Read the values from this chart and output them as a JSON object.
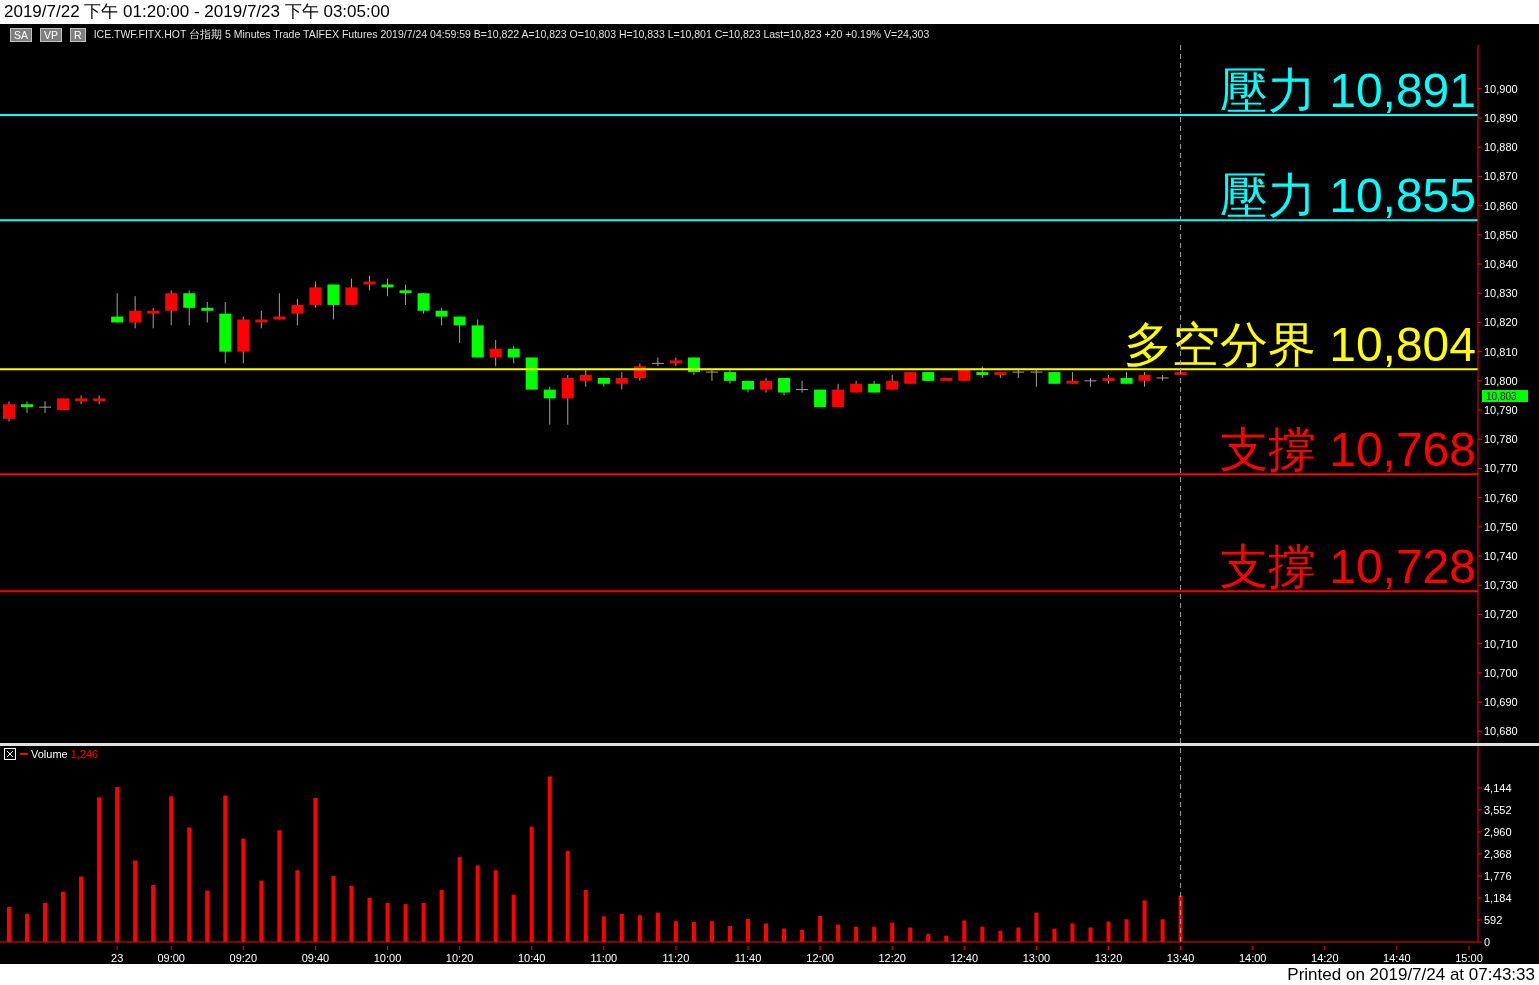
{
  "chart_data": [
    {
      "type": "candlestick",
      "title": "2019/7/22 下午 01:20:00 - 2019/7/23 下午 03:05:00",
      "subtitle": "ICE.TWF.FITX.HOT  台指期  5 Minutes  Trade  TAIFEX  Futures  2019/7/24  04:59:59  B=10,822  A=10,823  O=10,803  H=10,833  L=10,801  C=10,823  Last=10,823  +20  +0.19%  V=24,303",
      "categories": [
        null,
        null,
        null,
        null,
        null,
        null,
        "23",
        null,
        null,
        "09:00",
        null,
        null,
        null,
        "09:20",
        null,
        null,
        null,
        "09:40",
        null,
        null,
        null,
        "10:00",
        null,
        null,
        null,
        "10:20",
        null,
        null,
        null,
        "10:40",
        null,
        null,
        null,
        "11:00",
        null,
        null,
        null,
        "11:20",
        null,
        null,
        null,
        "11:40",
        null,
        null,
        null,
        "12:00",
        null,
        null,
        null,
        "12:20",
        null,
        null,
        null,
        "12:40",
        null,
        null,
        null,
        "13:00",
        null,
        null,
        null,
        "13:20",
        null,
        null,
        null,
        "13:40",
        null,
        null,
        null,
        "14:00",
        null,
        null,
        null,
        "14:20",
        null,
        null,
        null,
        "14:40",
        null,
        null,
        null,
        "15:00"
      ],
      "ohlc": [
        [
          10787,
          10793,
          10786,
          10792
        ],
        [
          10792,
          10793,
          10789,
          10791
        ],
        [
          10791,
          10793,
          10789,
          10791
        ],
        [
          10790,
          10794,
          10790,
          10794
        ],
        [
          10793,
          10795,
          10792,
          10794
        ],
        [
          10793,
          10795,
          10792,
          10794
        ],
        [
          10822,
          10830,
          10820,
          10820
        ],
        [
          10820,
          10829,
          10818,
          10824
        ],
        [
          10823,
          10825,
          10818,
          10824
        ],
        [
          10824,
          10831,
          10819,
          10830
        ],
        [
          10830,
          10831,
          10819,
          10825
        ],
        [
          10825,
          10827,
          10820,
          10824
        ],
        [
          10823,
          10827,
          10806,
          10810
        ],
        [
          10810,
          10822,
          10806,
          10821
        ],
        [
          10820,
          10824,
          10818,
          10821
        ],
        [
          10821,
          10830,
          10821,
          10822
        ],
        [
          10823,
          10828,
          10819,
          10826
        ],
        [
          10826,
          10834,
          10825,
          10832
        ],
        [
          10833,
          10833,
          10821,
          10826
        ],
        [
          10826,
          10835,
          10826,
          10832
        ],
        [
          10833,
          10836,
          10831,
          10834
        ],
        [
          10833,
          10835,
          10829,
          10832
        ],
        [
          10831,
          10833,
          10826,
          10830
        ],
        [
          10830,
          10830,
          10823,
          10824
        ],
        [
          10824,
          10825,
          10819,
          10822
        ],
        [
          10822,
          10822,
          10813,
          10819
        ],
        [
          10819,
          10821,
          10808,
          10808
        ],
        [
          10808,
          10814,
          10805,
          10811
        ],
        [
          10811,
          10812,
          10806,
          10808
        ],
        [
          10808,
          10808,
          10797,
          10797
        ],
        [
          10797,
          10798,
          10785,
          10794
        ],
        [
          10794,
          10802,
          10785,
          10801
        ],
        [
          10800,
          10804,
          10798,
          10802
        ],
        [
          10801,
          10801,
          10798,
          10799
        ],
        [
          10799,
          10803,
          10797,
          10801
        ],
        [
          10801,
          10806,
          10800,
          10805
        ],
        [
          10806,
          10808,
          10805,
          10806
        ],
        [
          10806,
          10808,
          10805,
          10807
        ],
        [
          10808,
          10808,
          10802,
          10803
        ],
        [
          10803,
          10804,
          10800,
          10803
        ],
        [
          10803,
          10804,
          10799,
          10800
        ],
        [
          10800,
          10800,
          10796,
          10797
        ],
        [
          10797,
          10801,
          10796,
          10800
        ],
        [
          10801,
          10801,
          10795,
          10796
        ],
        [
          10797,
          10800,
          10796,
          10797
        ],
        [
          10797,
          10797,
          10791,
          10791
        ],
        [
          10791,
          10799,
          10791,
          10797
        ],
        [
          10796,
          10800,
          10796,
          10799
        ],
        [
          10799,
          10800,
          10796,
          10796
        ],
        [
          10797,
          10802,
          10797,
          10800
        ],
        [
          10799,
          10803,
          10799,
          10803
        ],
        [
          10803,
          10803,
          10800,
          10800
        ],
        [
          10800,
          10801,
          10800,
          10801
        ],
        [
          10800,
          10804,
          10800,
          10804
        ],
        [
          10803,
          10805,
          10801,
          10802
        ],
        [
          10802,
          10803,
          10801,
          10803
        ],
        [
          10803,
          10804,
          10801,
          10803
        ],
        [
          10803,
          10804,
          10798,
          10803
        ],
        [
          10803,
          10803,
          10799,
          10799
        ],
        [
          10799,
          10803,
          10799,
          10800
        ],
        [
          10800,
          10801,
          10798,
          10800
        ],
        [
          10800,
          10802,
          10799,
          10801
        ],
        [
          10801,
          10803,
          10799,
          10799
        ],
        [
          10800,
          10803,
          10798,
          10802
        ],
        [
          10801,
          10802,
          10800,
          10801
        ],
        [
          10802,
          10803,
          10802,
          10803
        ],
        null,
        null,
        null,
        null,
        null,
        null,
        null,
        null,
        null,
        null,
        null,
        null,
        null,
        null,
        null,
        null
      ],
      "colors": [
        "#ff0000",
        "#00ff00",
        "#a0a0a0",
        "#ff0000",
        "#ff0000",
        "#ff0000",
        "#00ff00",
        "#ff0000",
        "#ff0000",
        "#ff0000",
        "#00ff00",
        "#00ff00",
        "#00ff00",
        "#ff0000",
        "#ff0000",
        "#ff0000",
        "#ff0000",
        "#ff0000",
        "#00ff00",
        "#ff0000",
        "#ff0000",
        "#00ff00",
        "#00ff00",
        "#00ff00",
        "#00ff00",
        "#00ff00",
        "#00ff00",
        "#ff0000",
        "#00ff00",
        "#00ff00",
        "#00ff00",
        "#ff0000",
        "#ff0000",
        "#00ff00",
        "#ff0000",
        "#ff0000",
        "#a0a0a0",
        "#ff0000",
        "#00ff00",
        "#a0a0a0",
        "#00ff00",
        "#00ff00",
        "#ff0000",
        "#00ff00",
        "#a0a0a0",
        "#00ff00",
        "#ff0000",
        "#ff0000",
        "#00ff00",
        "#ff0000",
        "#ff0000",
        "#00ff00",
        "#ff0000",
        "#ff0000",
        "#00ff00",
        "#ff0000",
        "#a0a0a0",
        "#a0a0a0",
        "#00ff00",
        "#ff0000",
        "#a0a0a0",
        "#ff0000",
        "#00ff00",
        "#ff0000",
        "#a0a0a0",
        "#ff0000",
        null,
        null,
        null,
        null,
        null,
        null,
        null,
        null,
        null,
        null,
        null,
        null,
        null,
        null,
        null,
        null
      ],
      "ylim": [
        10676,
        10915
      ],
      "yticks": [
        {
          "value": 10680,
          "label": "10,680"
        },
        {
          "value": 10690,
          "label": "10,690"
        },
        {
          "value": 10700,
          "label": "10,700"
        },
        {
          "value": 10710,
          "label": "10,710"
        },
        {
          "value": 10720,
          "label": "10,720"
        },
        {
          "value": 10730,
          "label": "10,730"
        },
        {
          "value": 10740,
          "label": "10,740"
        },
        {
          "value": 10750,
          "label": "10,750"
        },
        {
          "value": 10760,
          "label": "10,760"
        },
        {
          "value": 10770,
          "label": "10,770"
        },
        {
          "value": 10780,
          "label": "10,780"
        },
        {
          "value": 10790,
          "label": "10,790"
        },
        {
          "value": 10800,
          "label": "10,800"
        },
        {
          "value": 10810,
          "label": "10,810"
        },
        {
          "value": 10820,
          "label": "10,820"
        },
        {
          "value": 10830,
          "label": "10,830"
        },
        {
          "value": 10840,
          "label": "10,840"
        },
        {
          "value": 10850,
          "label": "10,850"
        },
        {
          "value": 10860,
          "label": "10,860"
        },
        {
          "value": 10870,
          "label": "10,870"
        },
        {
          "value": 10880,
          "label": "10,880"
        },
        {
          "value": 10890,
          "label": "10,890"
        },
        {
          "value": 10900,
          "label": "10,900"
        }
      ],
      "tick_labels": "y",
      "ref_lines": [
        {
          "axis": "y",
          "value": 10891,
          "label": "壓力 10,891",
          "color": "#00ffff"
        },
        {
          "axis": "y",
          "value": 10855,
          "label": "壓力 10,855",
          "color": "#00ffff"
        },
        {
          "axis": "y",
          "value": 10804,
          "label": "多空分界 10,804",
          "color": "#ffff00"
        },
        {
          "axis": "y",
          "value": 10768,
          "label": "支撐 10,768",
          "color": "#ff0000"
        },
        {
          "axis": "y",
          "value": 10728,
          "label": "支撐 10,728",
          "color": "#ff0000"
        },
        {
          "axis": "x",
          "value": "13:40",
          "color": "#a0a0a0",
          "line_style": "dashed"
        }
      ],
      "annotations": [
        "SA",
        "VP",
        "R",
        "10,803"
      ]
    },
    {
      "type": "bar",
      "categories": [
        null,
        null,
        null,
        null,
        null,
        null,
        "23",
        null,
        null,
        "09:00",
        null,
        null,
        null,
        "09:20",
        null,
        null,
        null,
        "09:40",
        null,
        null,
        null,
        "10:00",
        null,
        null,
        null,
        "10:20",
        null,
        null,
        null,
        "10:40",
        null,
        null,
        null,
        "11:00",
        null,
        null,
        null,
        "11:20",
        null,
        null,
        null,
        "11:40",
        null,
        null,
        null,
        "12:00",
        null,
        null,
        null,
        "12:20",
        null,
        null,
        null,
        "12:40",
        null,
        null,
        null,
        "13:00",
        null,
        null,
        null,
        "13:20",
        null,
        null,
        null,
        "13:40",
        null,
        null,
        null,
        "14:00",
        null,
        null,
        null,
        "14:20",
        null,
        null,
        null,
        "14:40",
        null,
        null,
        null,
        "15:00"
      ],
      "series": [
        {
          "name": "Volume",
          "color": "#ff0000",
          "values": [
            940,
            760,
            1050,
            1350,
            1760,
            3890,
            4170,
            2190,
            1530,
            3920,
            3080,
            1380,
            3940,
            2780,
            1650,
            3000,
            1930,
            3870,
            1780,
            1510,
            1190,
            1050,
            1020,
            1050,
            1400,
            2280,
            2060,
            1930,
            1270,
            3100,
            4450,
            2450,
            1400,
            690,
            760,
            720,
            790,
            560,
            540,
            560,
            430,
            620,
            500,
            360,
            330,
            700,
            470,
            410,
            410,
            520,
            390,
            220,
            170,
            580,
            410,
            300,
            390,
            790,
            360,
            500,
            390,
            550,
            610,
            1120,
            610,
            1246,
            null,
            null,
            null,
            null,
            null,
            null,
            null,
            null,
            null,
            null,
            null,
            null,
            null,
            null,
            null,
            null
          ]
        }
      ],
      "ylim": [
        0,
        5270
      ],
      "yticks": [
        0,
        592,
        {
          "value": 1184,
          "label": "1,184"
        },
        {
          "value": 1776,
          "label": "1,776"
        },
        {
          "value": 2368,
          "label": "2,368"
        },
        {
          "value": 2960,
          "label": "2,960"
        },
        {
          "value": 3552,
          "label": "3,552"
        },
        {
          "value": 4144,
          "label": "4,144"
        }
      ],
      "legend": "top left",
      "ref_lines": [
        {
          "axis": "x",
          "value": "13:40",
          "color": "#a0a0a0",
          "line_style": "dashed"
        }
      ],
      "annotations": [
        "1,246",
        "Printed on 2019/7/24 at 07:43:33"
      ]
    }
  ]
}
